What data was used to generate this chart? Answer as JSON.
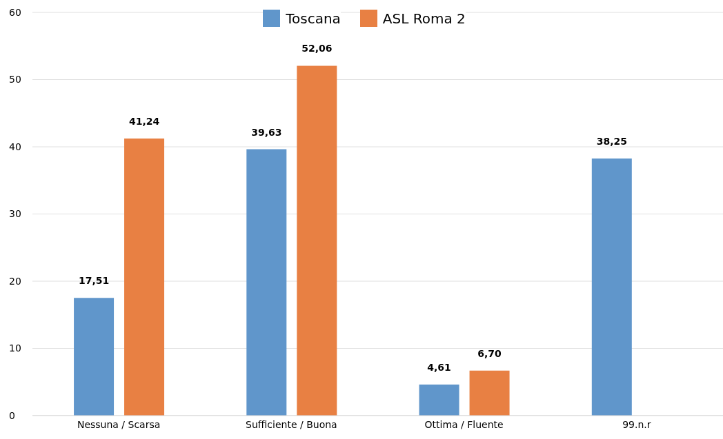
{
  "chart_data": {
    "type": "bar",
    "categories": [
      "Nessuna / Scarsa",
      "Sufficiente / Buona",
      "Ottima / Fluente",
      "99.n.r"
    ],
    "series": [
      {
        "name": "Toscana",
        "color": "#6096cb",
        "values": [
          17.51,
          39.63,
          4.61,
          38.25
        ],
        "value_labels": [
          "17,51",
          "39,63",
          "4,61",
          "38,25"
        ]
      },
      {
        "name": "ASL Roma 2",
        "color": "#e88043",
        "values": [
          41.24,
          52.06,
          6.7,
          null
        ],
        "value_labels": [
          "41,24",
          "52,06",
          "6,70",
          null
        ]
      }
    ],
    "ylim": [
      0,
      60
    ],
    "yticks": [
      0,
      10,
      20,
      30,
      40,
      50,
      60
    ],
    "grid": "y",
    "legend": "top"
  }
}
